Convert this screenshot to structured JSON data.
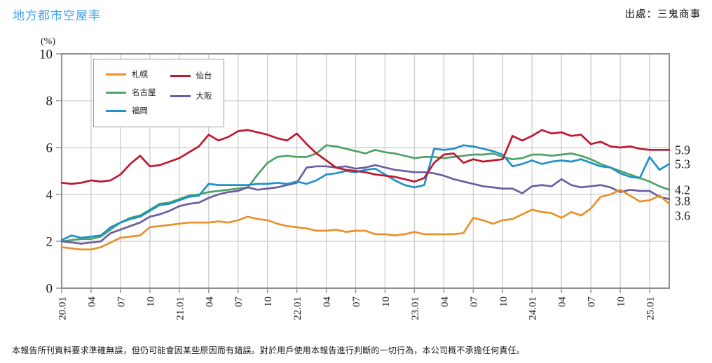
{
  "header": {
    "title": "地方都市空屋率",
    "source": "出處：三鬼商事"
  },
  "footer": {
    "disclaimer": "本報告所刊資料要求準確無誤，但仍可能會因某些原因而有錯誤。對於用戶使用本報告進行判斷的一切行為，本公司概不承擔任何責任。"
  },
  "colors": {
    "title_accent": "#3F9EF2",
    "grid": "#cccccc",
    "plot_border": "#909090",
    "axis_text": "#1a1a1a"
  },
  "chart_data": {
    "type": "line",
    "title": "地方都市空屋率",
    "ylabel": "(%)",
    "ylim": [
      0,
      10
    ],
    "yticks": [
      0,
      2,
      4,
      6,
      8,
      10
    ],
    "x_tick_labels": [
      "20.01",
      "04",
      "07",
      "10",
      "21.01",
      "04",
      "07",
      "10",
      "22.01",
      "04",
      "07",
      "10",
      "23.01",
      "04",
      "07",
      "10",
      "24.01",
      "04",
      "07",
      "10",
      "25.01"
    ],
    "x_tick_every": 3,
    "grid": true,
    "legend_position": "top-left-inside",
    "legend_columns": [
      [
        "札幌",
        "名古屋",
        "福岡"
      ],
      [
        "仙台",
        "大阪"
      ]
    ],
    "x": [
      "20.01",
      "20.02",
      "20.03",
      "20.04",
      "20.05",
      "20.06",
      "20.07",
      "20.08",
      "20.09",
      "20.10",
      "20.11",
      "20.12",
      "21.01",
      "21.02",
      "21.03",
      "21.04",
      "21.05",
      "21.06",
      "21.07",
      "21.08",
      "21.09",
      "21.10",
      "21.11",
      "21.12",
      "22.01",
      "22.02",
      "22.03",
      "22.04",
      "22.05",
      "22.06",
      "22.07",
      "22.08",
      "22.09",
      "22.10",
      "22.11",
      "22.12",
      "23.01",
      "23.02",
      "23.03",
      "23.04",
      "23.05",
      "23.06",
      "23.07",
      "23.08",
      "23.09",
      "23.10",
      "23.11",
      "23.12",
      "24.01",
      "24.02",
      "24.03",
      "24.04",
      "24.05",
      "24.06",
      "24.07",
      "24.08",
      "24.09",
      "24.10",
      "24.11",
      "24.12",
      "25.01",
      "25.02",
      "25.03"
    ],
    "series": [
      {
        "name": "名古屋",
        "color": "#4DA266",
        "end_label": "4.2",
        "end_label_nudge": 0,
        "values": [
          2.0,
          2.05,
          2.1,
          2.1,
          2.2,
          2.5,
          2.8,
          3.0,
          3.1,
          3.35,
          3.6,
          3.65,
          3.8,
          3.95,
          4.0,
          4.1,
          4.15,
          4.2,
          4.25,
          4.3,
          4.85,
          5.35,
          5.6,
          5.65,
          5.6,
          5.6,
          5.75,
          6.1,
          6.05,
          5.95,
          5.85,
          5.75,
          5.9,
          5.8,
          5.75,
          5.65,
          5.55,
          5.6,
          5.6,
          5.55,
          5.6,
          5.65,
          5.7,
          5.7,
          5.75,
          5.6,
          5.5,
          5.55,
          5.7,
          5.7,
          5.65,
          5.7,
          5.75,
          5.65,
          5.5,
          5.3,
          5.15,
          5.0,
          4.85,
          4.7,
          4.55,
          4.35,
          4.2
        ]
      },
      {
        "name": "大阪",
        "color": "#6A5FA0",
        "end_label": "3.8",
        "end_label_nudge": 3,
        "values": [
          2.0,
          1.95,
          1.9,
          1.95,
          2.0,
          2.35,
          2.5,
          2.65,
          2.8,
          3.05,
          3.15,
          3.3,
          3.5,
          3.6,
          3.65,
          3.85,
          4.0,
          4.1,
          4.15,
          4.3,
          4.2,
          4.25,
          4.3,
          4.4,
          4.5,
          5.15,
          5.2,
          5.2,
          5.15,
          5.2,
          5.1,
          5.15,
          5.25,
          5.15,
          5.05,
          5.0,
          4.95,
          4.95,
          4.9,
          4.8,
          4.65,
          4.55,
          4.45,
          4.35,
          4.3,
          4.25,
          4.25,
          4.05,
          4.35,
          4.4,
          4.35,
          4.65,
          4.4,
          4.3,
          4.35,
          4.4,
          4.3,
          4.1,
          4.2,
          4.15,
          4.15,
          3.9,
          3.8
        ]
      },
      {
        "name": "札幌",
        "color": "#E8912D",
        "end_label": "3.6",
        "end_label_nudge": 17,
        "values": [
          1.75,
          1.7,
          1.65,
          1.65,
          1.75,
          1.95,
          2.15,
          2.2,
          2.25,
          2.6,
          2.65,
          2.7,
          2.75,
          2.8,
          2.8,
          2.8,
          2.85,
          2.8,
          2.9,
          3.05,
          2.95,
          2.9,
          2.75,
          2.65,
          2.6,
          2.55,
          2.45,
          2.45,
          2.5,
          2.4,
          2.45,
          2.45,
          2.3,
          2.3,
          2.25,
          2.3,
          2.4,
          2.3,
          2.3,
          2.3,
          2.3,
          2.35,
          3.0,
          2.9,
          2.75,
          2.9,
          2.95,
          3.15,
          3.35,
          3.25,
          3.2,
          3.0,
          3.25,
          3.1,
          3.4,
          3.9,
          4.0,
          4.2,
          3.95,
          3.7,
          3.75,
          3.95,
          3.6
        ]
      },
      {
        "name": "福岡",
        "color": "#2191C9",
        "end_label": "5.3",
        "end_label_nudge": 0,
        "values": [
          2.05,
          2.25,
          2.15,
          2.2,
          2.25,
          2.6,
          2.8,
          2.95,
          3.05,
          3.3,
          3.55,
          3.6,
          3.75,
          3.9,
          3.95,
          4.45,
          4.4,
          4.4,
          4.4,
          4.4,
          4.45,
          4.45,
          4.5,
          4.45,
          4.55,
          4.45,
          4.6,
          4.85,
          4.9,
          5.0,
          4.95,
          5.05,
          5.1,
          4.85,
          4.6,
          4.4,
          4.3,
          4.4,
          5.95,
          5.9,
          5.95,
          6.1,
          6.05,
          5.95,
          5.85,
          5.7,
          5.2,
          5.3,
          5.45,
          5.3,
          5.4,
          5.45,
          5.4,
          5.5,
          5.35,
          5.2,
          5.15,
          4.9,
          4.75,
          4.7,
          5.6,
          5.05,
          5.3
        ]
      },
      {
        "name": "仙台",
        "color": "#C0182F",
        "end_label": "5.9",
        "end_label_nudge": 0,
        "values": [
          4.5,
          4.45,
          4.5,
          4.6,
          4.55,
          4.6,
          4.85,
          5.3,
          5.65,
          5.2,
          5.25,
          5.4,
          5.55,
          5.8,
          6.05,
          6.55,
          6.3,
          6.45,
          6.7,
          6.75,
          6.65,
          6.55,
          6.4,
          6.3,
          6.6,
          6.15,
          5.75,
          5.45,
          5.15,
          5.05,
          5.0,
          4.95,
          4.85,
          4.8,
          4.75,
          4.65,
          4.55,
          4.7,
          5.35,
          5.7,
          5.75,
          5.35,
          5.5,
          5.4,
          5.45,
          5.5,
          6.5,
          6.3,
          6.5,
          6.75,
          6.6,
          6.65,
          6.5,
          6.55,
          6.15,
          6.25,
          6.05,
          6.0,
          6.05,
          5.95,
          5.9,
          5.9,
          5.9
        ]
      }
    ]
  }
}
